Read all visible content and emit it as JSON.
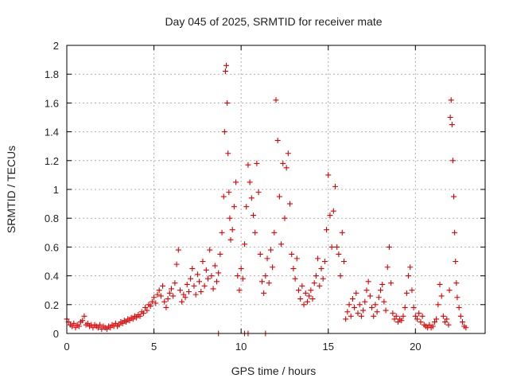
{
  "chart_data": {
    "type": "scatter",
    "title": "Day 045 of 2025, SRMTID for receiver mate",
    "xlabel": "GPS time / hours",
    "ylabel": "SRMTID / TECUs",
    "xlim": [
      0,
      24
    ],
    "ylim": [
      0,
      2
    ],
    "xticks": [
      0,
      5,
      10,
      15,
      20
    ],
    "yticks": [
      0,
      0.2,
      0.4,
      0.6,
      0.8,
      1,
      1.2,
      1.4,
      1.6,
      1.8,
      2
    ],
    "xtick_labels": [
      "0",
      "5",
      "10",
      "15",
      "20"
    ],
    "ytick_labels": [
      "0",
      "0.2",
      "0.4",
      "0.6",
      "0.8",
      "1",
      "1.2",
      "1.4",
      "1.6",
      "1.8",
      "2"
    ],
    "grid": true,
    "marker": "plus",
    "color": "#e00000",
    "series": [
      {
        "points": [
          [
            0.0,
            0.1
          ],
          [
            0.1,
            0.08
          ],
          [
            0.2,
            0.06
          ],
          [
            0.3,
            0.05
          ],
          [
            0.4,
            0.07
          ],
          [
            0.5,
            0.04
          ],
          [
            0.6,
            0.06
          ],
          [
            0.7,
            0.05
          ],
          [
            0.8,
            0.08
          ],
          [
            0.9,
            0.09
          ],
          [
            1.0,
            0.12
          ],
          [
            1.1,
            0.06
          ],
          [
            1.2,
            0.07
          ],
          [
            1.3,
            0.05
          ],
          [
            1.4,
            0.06
          ],
          [
            1.5,
            0.04
          ],
          [
            1.6,
            0.06
          ],
          [
            1.7,
            0.05
          ],
          [
            1.8,
            0.04
          ],
          [
            1.9,
            0.06
          ],
          [
            2.0,
            0.03
          ],
          [
            2.1,
            0.05
          ],
          [
            2.2,
            0.04
          ],
          [
            2.3,
            0.03
          ],
          [
            2.4,
            0.05
          ],
          [
            2.5,
            0.04
          ],
          [
            2.6,
            0.06
          ],
          [
            2.7,
            0.05
          ],
          [
            2.8,
            0.07
          ],
          [
            2.9,
            0.05
          ],
          [
            3.0,
            0.06
          ],
          [
            3.1,
            0.08
          ],
          [
            3.2,
            0.07
          ],
          [
            3.3,
            0.09
          ],
          [
            3.4,
            0.08
          ],
          [
            3.5,
            0.1
          ],
          [
            3.6,
            0.09
          ],
          [
            3.7,
            0.11
          ],
          [
            3.8,
            0.1
          ],
          [
            3.9,
            0.12
          ],
          [
            4.0,
            0.11
          ],
          [
            4.1,
            0.13
          ],
          [
            4.2,
            0.12
          ],
          [
            4.3,
            0.15
          ],
          [
            4.4,
            0.14
          ],
          [
            4.5,
            0.18
          ],
          [
            4.6,
            0.16
          ],
          [
            4.7,
            0.2
          ],
          [
            4.8,
            0.19
          ],
          [
            4.9,
            0.22
          ],
          [
            5.0,
            0.25
          ],
          [
            5.1,
            0.21
          ],
          [
            5.2,
            0.27
          ],
          [
            5.3,
            0.3
          ],
          [
            5.4,
            0.26
          ],
          [
            5.5,
            0.33
          ],
          [
            5.6,
            0.22
          ],
          [
            5.7,
            0.18
          ],
          [
            5.8,
            0.24
          ],
          [
            5.9,
            0.28
          ],
          [
            6.0,
            0.31
          ],
          [
            6.1,
            0.26
          ],
          [
            6.2,
            0.35
          ],
          [
            6.3,
            0.48
          ],
          [
            6.4,
            0.58
          ],
          [
            6.5,
            0.3
          ],
          [
            6.6,
            0.22
          ],
          [
            6.7,
            0.27
          ],
          [
            6.8,
            0.25
          ],
          [
            6.9,
            0.34
          ],
          [
            7.0,
            0.29
          ],
          [
            7.1,
            0.38
          ],
          [
            7.2,
            0.45
          ],
          [
            7.3,
            0.33
          ],
          [
            7.4,
            0.27
          ],
          [
            7.5,
            0.41
          ],
          [
            7.6,
            0.36
          ],
          [
            7.7,
            0.29
          ],
          [
            7.8,
            0.5
          ],
          [
            7.9,
            0.33
          ],
          [
            8.0,
            0.44
          ],
          [
            8.1,
            0.38
          ],
          [
            8.2,
            0.58
          ],
          [
            8.3,
            0.4
          ],
          [
            8.4,
            0.31
          ],
          [
            8.5,
            0.47
          ],
          [
            8.6,
            0.36
          ],
          [
            8.7,
            0.42
          ],
          [
            8.8,
            0.55
          ],
          [
            8.9,
            0.7
          ],
          [
            9.0,
            0.95
          ],
          [
            9.05,
            1.4
          ],
          [
            9.1,
            1.82
          ],
          [
            9.15,
            1.86
          ],
          [
            9.2,
            1.6
          ],
          [
            9.25,
            1.25
          ],
          [
            9.3,
            0.98
          ],
          [
            9.35,
            0.8
          ],
          [
            9.4,
            0.65
          ],
          [
            9.5,
            0.72
          ],
          [
            9.6,
            0.88
          ],
          [
            9.7,
            1.05
          ],
          [
            9.8,
            0.4
          ],
          [
            9.9,
            0.3
          ],
          [
            10.0,
            0.45
          ],
          [
            10.1,
            0.38
          ],
          [
            10.2,
            0.62
          ],
          [
            10.3,
            0.88
          ],
          [
            10.4,
            1.17
          ],
          [
            10.5,
            1.05
          ],
          [
            10.6,
            0.94
          ],
          [
            10.7,
            0.82
          ],
          [
            10.8,
            0.7
          ],
          [
            10.9,
            1.18
          ],
          [
            11.0,
            0.98
          ],
          [
            11.1,
            0.55
          ],
          [
            11.2,
            0.36
          ],
          [
            11.3,
            0.28
          ],
          [
            11.4,
            0.4
          ],
          [
            11.5,
            0.52
          ],
          [
            11.6,
            0.35
          ],
          [
            11.7,
            0.58
          ],
          [
            11.8,
            0.46
          ],
          [
            11.9,
            0.7
          ],
          [
            12.0,
            1.62
          ],
          [
            12.1,
            1.34
          ],
          [
            12.2,
            0.95
          ],
          [
            12.3,
            0.62
          ],
          [
            12.4,
            1.18
          ],
          [
            12.5,
            0.8
          ],
          [
            12.6,
            1.15
          ],
          [
            12.7,
            1.25
          ],
          [
            12.8,
            0.9
          ],
          [
            12.9,
            0.55
          ],
          [
            13.0,
            0.45
          ],
          [
            13.1,
            0.38
          ],
          [
            13.2,
            0.52
          ],
          [
            13.3,
            0.3
          ],
          [
            13.4,
            0.24
          ],
          [
            13.5,
            0.33
          ],
          [
            13.6,
            0.2
          ],
          [
            13.7,
            0.28
          ],
          [
            13.8,
            0.22
          ],
          [
            13.9,
            0.26
          ],
          [
            14.0,
            0.3
          ],
          [
            14.1,
            0.24
          ],
          [
            14.2,
            0.35
          ],
          [
            14.3,
            0.4
          ],
          [
            14.4,
            0.52
          ],
          [
            14.5,
            0.33
          ],
          [
            14.6,
            0.45
          ],
          [
            14.7,
            0.38
          ],
          [
            14.8,
            0.5
          ],
          [
            14.9,
            0.72
          ],
          [
            15.0,
            1.1
          ],
          [
            15.1,
            0.82
          ],
          [
            15.2,
            0.6
          ],
          [
            15.3,
            0.85
          ],
          [
            15.4,
            1.02
          ],
          [
            15.5,
            0.6
          ],
          [
            15.6,
            0.55
          ],
          [
            15.7,
            0.4
          ],
          [
            15.8,
            0.7
          ],
          [
            15.9,
            0.5
          ],
          [
            16.0,
            0.1
          ],
          [
            16.1,
            0.15
          ],
          [
            16.2,
            0.2
          ],
          [
            16.3,
            0.12
          ],
          [
            16.4,
            0.24
          ],
          [
            16.5,
            0.18
          ],
          [
            16.6,
            0.28
          ],
          [
            16.7,
            0.14
          ],
          [
            16.8,
            0.2
          ],
          [
            16.9,
            0.12
          ],
          [
            17.0,
            0.16
          ],
          [
            17.1,
            0.22
          ],
          [
            17.2,
            0.3
          ],
          [
            17.3,
            0.36
          ],
          [
            17.4,
            0.26
          ],
          [
            17.5,
            0.18
          ],
          [
            17.6,
            0.12
          ],
          [
            17.7,
            0.2
          ],
          [
            17.8,
            0.15
          ],
          [
            17.9,
            0.25
          ],
          [
            18.0,
            0.3
          ],
          [
            18.1,
            0.34
          ],
          [
            18.2,
            0.22
          ],
          [
            18.3,
            0.16
          ],
          [
            18.4,
            0.46
          ],
          [
            18.5,
            0.6
          ],
          [
            18.6,
            0.35
          ],
          [
            18.7,
            0.14
          ],
          [
            18.8,
            0.1
          ],
          [
            18.9,
            0.12
          ],
          [
            19.0,
            0.08
          ],
          [
            19.1,
            0.1
          ],
          [
            19.2,
            0.09
          ],
          [
            19.3,
            0.12
          ],
          [
            19.4,
            0.18
          ],
          [
            19.5,
            0.28
          ],
          [
            19.6,
            0.4
          ],
          [
            19.7,
            0.46
          ],
          [
            19.8,
            0.3
          ],
          [
            19.9,
            0.18
          ],
          [
            20.0,
            0.12
          ],
          [
            20.1,
            0.1
          ],
          [
            20.2,
            0.14
          ],
          [
            20.3,
            0.08
          ],
          [
            20.4,
            0.12
          ],
          [
            20.5,
            0.06
          ],
          [
            20.6,
            0.05
          ],
          [
            20.7,
            0.04
          ],
          [
            20.8,
            0.06
          ],
          [
            20.9,
            0.04
          ],
          [
            21.0,
            0.05
          ],
          [
            21.1,
            0.08
          ],
          [
            21.2,
            0.1
          ],
          [
            21.3,
            0.2
          ],
          [
            21.4,
            0.34
          ],
          [
            21.5,
            0.26
          ],
          [
            21.6,
            0.12
          ],
          [
            21.7,
            0.08
          ],
          [
            21.8,
            0.1
          ],
          [
            21.9,
            0.06
          ],
          [
            21.95,
            0.3
          ],
          [
            22.0,
            1.5
          ],
          [
            22.05,
            1.62
          ],
          [
            22.1,
            1.45
          ],
          [
            22.15,
            1.2
          ],
          [
            22.2,
            0.95
          ],
          [
            22.25,
            0.7
          ],
          [
            22.3,
            0.5
          ],
          [
            22.35,
            0.35
          ],
          [
            22.4,
            0.25
          ],
          [
            22.5,
            0.18
          ],
          [
            22.6,
            0.12
          ],
          [
            22.7,
            0.08
          ],
          [
            22.8,
            0.05
          ],
          [
            22.9,
            0.04
          ]
        ]
      },
      {
        "points": [
          [
            8.7,
            0.0
          ],
          [
            10.2,
            0.0
          ],
          [
            10.4,
            0.0
          ],
          [
            11.4,
            0.0
          ]
        ]
      }
    ]
  }
}
